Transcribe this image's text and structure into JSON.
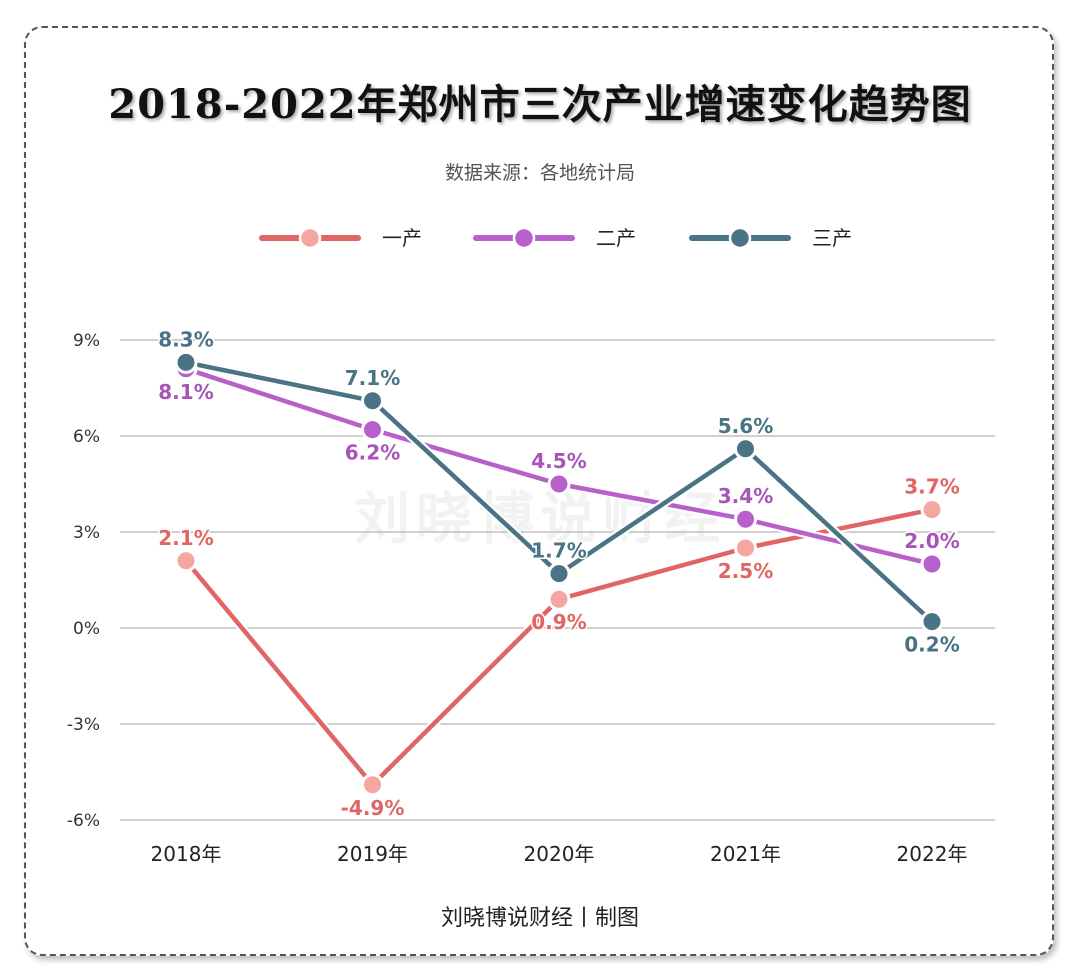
{
  "title": "2018-2022年郑州市三次产业增速变化趋势图",
  "subtitle": "数据来源：各地统计局",
  "footer": "刘晓博说财经丨制图",
  "watermark": "刘晓博说财经",
  "chart_data": {
    "type": "line",
    "title": "2018-2022年郑州市三次产业增速变化趋势图",
    "categories": [
      "2018年",
      "2019年",
      "2020年",
      "2021年",
      "2022年"
    ],
    "ylim": [
      -6,
      9
    ],
    "yticks": [
      -6,
      -3,
      0,
      3,
      6,
      9
    ],
    "ytick_labels": [
      "-6%",
      "-3%",
      "0%",
      "3%",
      "6%",
      "9%"
    ],
    "grid": true,
    "legend_position": "top-center",
    "series": [
      {
        "name": "一产",
        "color": "#e06666",
        "marker_color": "#f4a6a0",
        "label_color": "#e06666",
        "values": [
          2.1,
          -4.9,
          0.9,
          2.5,
          3.7
        ],
        "labels": [
          "2.1%",
          "-4.9%",
          "0.9%",
          "2.5%",
          "3.7%"
        ]
      },
      {
        "name": "二产",
        "color": "#b760c9",
        "marker_color": "#b760c9",
        "label_color": "#a855b8",
        "values": [
          8.1,
          6.2,
          4.5,
          3.4,
          2.0
        ],
        "labels": [
          "8.1%",
          "6.2%",
          "4.5%",
          "3.4%",
          "2.0%"
        ]
      },
      {
        "name": "三产",
        "color": "#4a7384",
        "marker_color": "#4a7384",
        "label_color": "#4a7384",
        "values": [
          8.3,
          7.1,
          1.7,
          5.6,
          0.2
        ],
        "labels": [
          "8.3%",
          "7.1%",
          "1.7%",
          "5.6%",
          "0.2%"
        ]
      }
    ]
  }
}
